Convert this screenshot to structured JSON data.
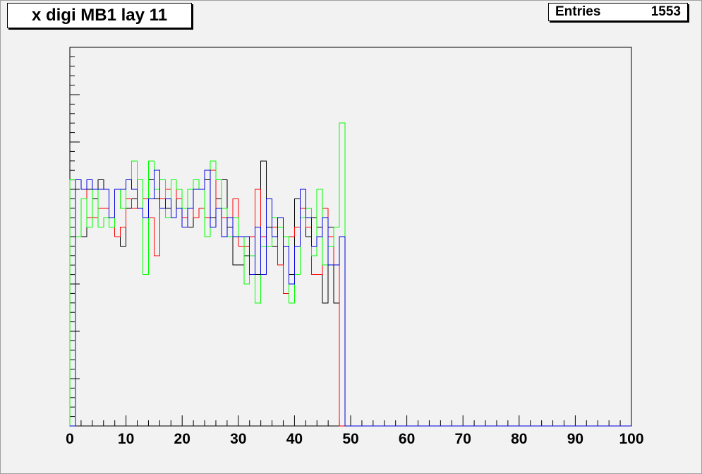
{
  "chart_data": {
    "type": "line",
    "style": "step-histogram",
    "title": "x digi MB1 lay 11",
    "stats": {
      "label": "Entries",
      "value": "1553"
    },
    "xlim": [
      0,
      100
    ],
    "ylim": [
      0,
      40
    ],
    "x_ticks": [
      "0",
      "10",
      "20",
      "30",
      "40",
      "50",
      "60",
      "70",
      "80",
      "90",
      "100"
    ],
    "grid": false,
    "bin_width": 1,
    "series": [
      {
        "color": "#000000",
        "values": [
          0,
          20,
          20,
          25,
          24,
          26,
          25,
          21,
          20,
          19,
          23,
          24,
          23,
          24,
          26,
          24,
          23,
          23,
          22,
          24,
          22,
          21,
          25,
          25,
          26,
          22,
          24,
          26,
          21,
          17,
          17,
          18,
          18,
          16,
          28,
          21,
          19,
          17,
          19,
          16,
          24,
          22,
          20,
          22,
          21,
          13,
          21,
          13,
          0,
          0
        ]
      },
      {
        "color": "#ff0000",
        "values": [
          0,
          26,
          25,
          22,
          22,
          23,
          23,
          22,
          20,
          21,
          24,
          23,
          26,
          24,
          22,
          18,
          24,
          25,
          26,
          24,
          22,
          23,
          22,
          23,
          22,
          27,
          23,
          22,
          20,
          24,
          19,
          19,
          20,
          25,
          20,
          24,
          21,
          17,
          14,
          20,
          21,
          23,
          21,
          16,
          16,
          23,
          20,
          17,
          0,
          0
        ]
      },
      {
        "color": "#00ff00",
        "values": [
          26,
          20,
          24,
          21,
          25,
          21,
          22,
          21,
          25,
          23,
          26,
          28,
          26,
          16,
          28,
          25,
          26,
          22,
          26,
          25,
          23,
          25,
          26,
          25,
          20,
          28,
          26,
          23,
          20,
          22,
          20,
          15,
          18,
          13,
          19,
          19,
          22,
          21,
          20,
          13,
          16,
          22,
          23,
          18,
          25,
          17,
          19,
          21,
          32,
          0
        ]
      },
      {
        "color": "#0000dd",
        "values": [
          0,
          26,
          25,
          26,
          25,
          25,
          25,
          22,
          25,
          25,
          26,
          25,
          23,
          22,
          24,
          27,
          23,
          24,
          22,
          23,
          21,
          23,
          25,
          25,
          27,
          21,
          23,
          20,
          22,
          20,
          20,
          20,
          16,
          21,
          16,
          24,
          20,
          22,
          19,
          15,
          19,
          25,
          22,
          19,
          20,
          22,
          17,
          17,
          20,
          0
        ]
      }
    ]
  }
}
